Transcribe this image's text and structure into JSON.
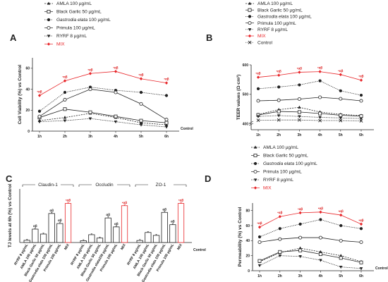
{
  "panel_letters": [
    "A",
    "B",
    "C",
    "D"
  ],
  "series_styles": {
    "AMLA 100 µg/mL": {
      "marker": "triangle",
      "color": "#222",
      "dash": "2,1.5"
    },
    "Black Garlic 50 µg/mL": {
      "marker": "square-open",
      "color": "#222",
      "dash": ""
    },
    "Gastrodia elata 100 µg/mL": {
      "marker": "circle",
      "color": "#222",
      "dash": "1.2,1.2"
    },
    "Primula 100 µg/mL": {
      "marker": "circle-open",
      "color": "#222",
      "dash": ""
    },
    "RYRF 8 µg/mL": {
      "marker": "triangle-down",
      "color": "#222",
      "dash": "1.2,1.2"
    },
    "MIX": {
      "marker": "diamond",
      "color": "#e8262a",
      "dash": ""
    },
    "Control": {
      "marker": "x",
      "color": "#222",
      "dash": "1.2,1.2"
    }
  },
  "chart_data": [
    {
      "panel": "A",
      "type": "line",
      "ylabel": "Cell Viability (%) vs Control",
      "x": [
        "1h",
        "2h",
        "3h",
        "4h",
        "5h",
        "6h"
      ],
      "x_end_label": "Control",
      "ylim": [
        0,
        70
      ],
      "yticks": [
        0,
        20,
        40,
        60
      ],
      "legend": {
        "position": "top",
        "entries": [
          "AMLA 100 µg/mL",
          "Black Garlic 50 µg/mL",
          "Gastrodia elata 100 µg/mL",
          "Primula 100 µg/mL",
          "RYRF 8 µg/mL",
          "MIX"
        ]
      },
      "series": [
        {
          "name": "AMLA 100 µg/mL",
          "values": [
            10,
            13,
            17,
            13,
            8,
            6
          ]
        },
        {
          "name": "Black Garlic 50 µg/mL",
          "values": [
            13,
            21,
            18,
            14,
            10,
            8
          ]
        },
        {
          "name": "Gastrodia elata 100 µg/mL",
          "values": [
            19,
            37,
            42,
            39,
            37,
            34
          ]
        },
        {
          "name": "Primula 100 µg/mL",
          "values": [
            14,
            30,
            40,
            37,
            26,
            11
          ]
        },
        {
          "name": "RYRF 8 µg/mL",
          "values": [
            9,
            10,
            12,
            9,
            6,
            4
          ]
        },
        {
          "name": "MIX",
          "values": [
            34,
            48,
            55,
            57,
            50,
            46
          ],
          "annotation": "•αβ"
        }
      ]
    },
    {
      "panel": "B",
      "type": "line",
      "ylabel": "TEER values (Ω·cm²)",
      "x": [
        "1h",
        "2h",
        "3h",
        "4h",
        "5h",
        "6h"
      ],
      "ylim": [
        380,
        600
      ],
      "yticks": [
        400,
        500,
        600
      ],
      "axis_break": true,
      "legend": {
        "position": "top",
        "entries": [
          "AMLA 100 µg/mL",
          "Black Garlic 50 µg/mL",
          "Gastrodia elata 100 µg/mL",
          "Primula 100 µg/mL",
          "RYRF 8 µg/mL",
          "MIX",
          "Control"
        ]
      },
      "series": [
        {
          "name": "AMLA 100 µg/mL",
          "values": [
            432,
            448,
            456,
            440,
            432,
            428
          ]
        },
        {
          "name": "Black Garlic 50 µg/mL",
          "values": [
            430,
            442,
            440,
            435,
            429,
            426
          ]
        },
        {
          "name": "Gastrodia elata 100 µg/mL",
          "values": [
            519,
            525,
            532,
            546,
            512,
            497
          ]
        },
        {
          "name": "Primula 100 µg/mL",
          "values": [
            478,
            480,
            484,
            490,
            485,
            478
          ]
        },
        {
          "name": "RYRF 8 µg/mL",
          "values": [
            425,
            428,
            425,
            422,
            420,
            418
          ]
        },
        {
          "name": "MIX",
          "values": [
            558,
            565,
            575,
            577,
            567,
            548
          ],
          "annotation": "•αβ"
        },
        {
          "name": "Control",
          "values": [
            412,
            413,
            413,
            411,
            411,
            410
          ]
        }
      ]
    },
    {
      "panel": "C",
      "type": "bar",
      "ylabel": "TJ levels at 6h (%) vs Control",
      "ylim": [
        0,
        24
      ],
      "x_end_label": "Control",
      "groups": [
        {
          "name": "Claudin-1",
          "categories": [
            "RYRF 8 µg/mL",
            "AMLA 100 µg/mL",
            "Black Garlic 50 µg/mL",
            "Gastrodia elata 100 µg/mL",
            "Primula 100 µg/mL",
            "MIX"
          ],
          "values": [
            1,
            6,
            3.8,
            13,
            8.5,
            17.5
          ],
          "annotations": [
            "",
            "αβ",
            "",
            "αβ",
            "αβ",
            "•αβ"
          ]
        },
        {
          "name": "Occludin",
          "categories": [
            "RYRF 8 µg/mL",
            "AMLA 100 µg/mL",
            "Black Garlic 50 µg/mL",
            "Gastrodia elata100 µg/mL",
            "Primula 100 µg/mL",
            "MIX"
          ],
          "values": [
            0.8,
            3.5,
            2,
            11,
            7,
            16.5
          ],
          "annotations": [
            "",
            "",
            "",
            "αβ",
            "αβ",
            "•αβ"
          ]
        },
        {
          "name": "ZO-1",
          "categories": [
            "RYRF 8 µg/mL",
            "AMLA 100 µg/mL",
            "Black Garlic 50 µg/mL",
            "Gastrodia elata 100 µg/mL",
            "Primula 100 µg/mL",
            "MIX"
          ],
          "values": [
            0.9,
            4.5,
            3.2,
            13.5,
            8,
            17.5
          ],
          "annotations": [
            "",
            "",
            "",
            "αβ",
            "αβ",
            "•αβ"
          ]
        }
      ]
    },
    {
      "panel": "D",
      "type": "line",
      "ylabel": "Permeability (%) vs Control",
      "x": [
        "1h",
        "2h",
        "3h",
        "4h",
        "5h",
        "6h"
      ],
      "x_end_label": "Control",
      "ylim": [
        0,
        90
      ],
      "yticks": [
        0,
        20,
        40,
        60,
        80
      ],
      "legend": {
        "position": "top",
        "entries": [
          "AMLA 100 µg/mL",
          "Black Garlic 50 µg/mL",
          "Gastrodia elata 100 µg/mL",
          "Primula 100 µg/mL",
          "RYRF 8 µg/mL",
          "MIX"
        ]
      },
      "series": [
        {
          "name": "AMLA 100 µg/mL",
          "values": [
            12,
            24,
            30,
            25,
            20,
            12
          ]
        },
        {
          "name": "Black Garlic 50 µg/mL",
          "values": [
            13,
            25,
            27,
            22,
            17,
            11
          ]
        },
        {
          "name": "Gastrodia elata 100 µg/mL",
          "values": [
            45,
            56,
            62,
            68,
            60,
            56
          ]
        },
        {
          "name": "Primula 100 µg/mL",
          "values": [
            38,
            42,
            44,
            44,
            40,
            38
          ]
        },
        {
          "name": "RYRF 8 µg/mL",
          "values": [
            7,
            20,
            19,
            14,
            5,
            3
          ]
        },
        {
          "name": "MIX",
          "values": [
            58,
            72,
            77,
            78,
            74,
            62
          ],
          "annotation": "•αβ"
        }
      ]
    }
  ]
}
